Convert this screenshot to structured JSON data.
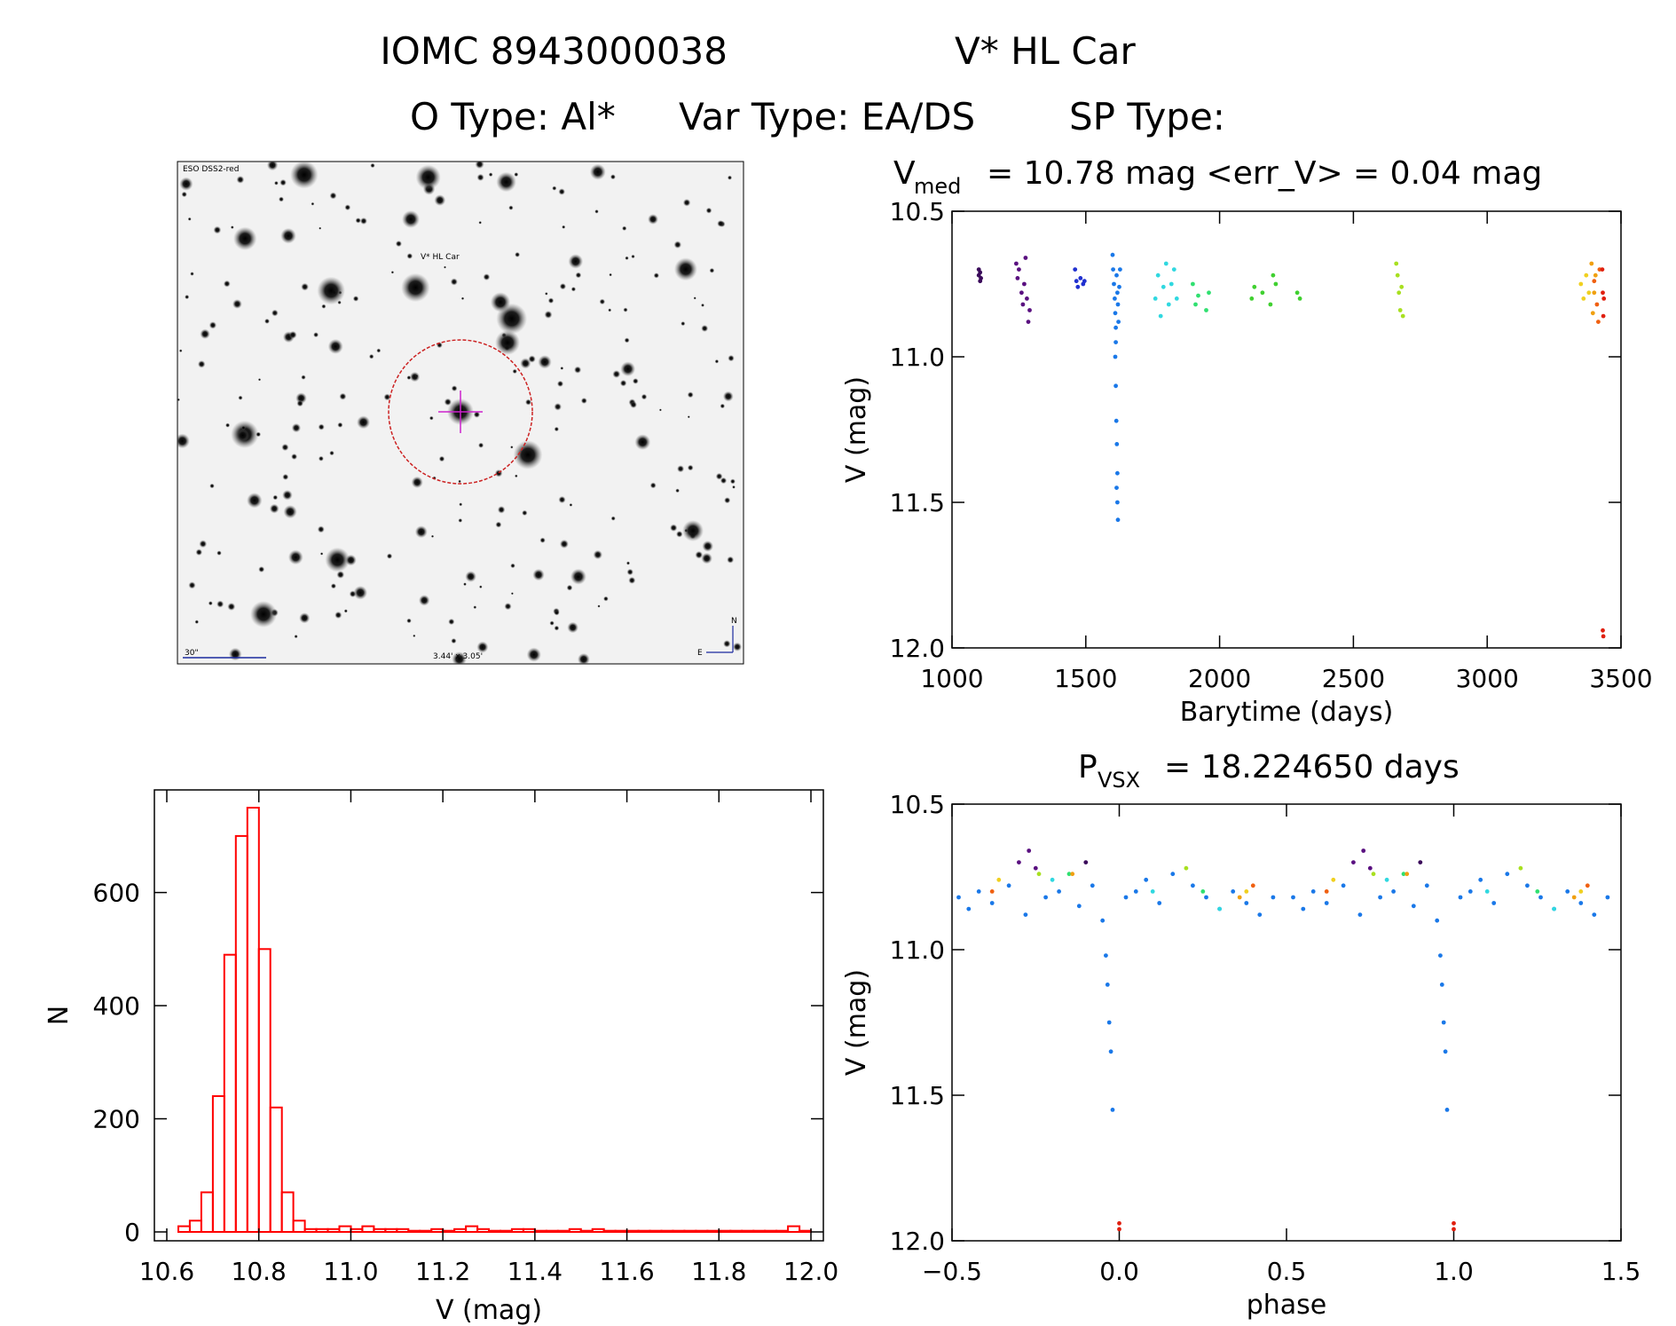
{
  "header": {
    "line1_id": "IOMC 8943000038",
    "line1_name": "V* HL Car",
    "line2_otype": "O Type: Al*",
    "line2_vartype": "Var Type: EA/DS",
    "line2_sptype": "SP Type:"
  },
  "finder": {
    "survey_label": "ESO DSS2-red",
    "target_label": "V* HL Car",
    "scale_label": "30\"",
    "fov_label": "3.44' x 3.05'",
    "north_label": "N",
    "east_label": "E"
  },
  "colors": {
    "histogram": "#ff0000",
    "circle": "#cc2222",
    "crosshair": "#cc22cc",
    "finder_text": "#1b2a9e"
  },
  "chart_data": [
    {
      "id": "lightcurve_time",
      "type": "scatter",
      "title_prefix": "V",
      "title_sub": "med",
      "title_rest": "= 10.78 mag <err_V> = 0.04 mag",
      "xlabel": "Barytime (days)",
      "ylabel": "V (mag)",
      "xlim": [
        1000,
        3500
      ],
      "ylim": [
        12.0,
        10.5
      ],
      "y_inverted": true,
      "xticks": [
        1000,
        1500,
        2000,
        2500,
        3000,
        3500
      ],
      "yticks": [
        10.5,
        11.0,
        11.5,
        12.0
      ],
      "series": [
        {
          "color": "#3a0a5a",
          "x": [
            1100,
            1100,
            1105,
            1105,
            1108
          ],
          "y": [
            10.7,
            10.72,
            10.74,
            10.71,
            10.73
          ]
        },
        {
          "color": "#5a1080",
          "x": [
            1240,
            1245,
            1250,
            1260,
            1265,
            1270,
            1275,
            1280,
            1285,
            1290
          ],
          "y": [
            10.68,
            10.73,
            10.7,
            10.78,
            10.82,
            10.75,
            10.66,
            10.8,
            10.88,
            10.84
          ]
        },
        {
          "color": "#2030d0",
          "x": [
            1460,
            1465,
            1470,
            1480,
            1490,
            1495
          ],
          "y": [
            10.7,
            10.74,
            10.76,
            10.73,
            10.75,
            10.74
          ]
        },
        {
          "color": "#1a78e8",
          "x": [
            1600,
            1602,
            1605,
            1608,
            1610,
            1612,
            1615,
            1618,
            1620,
            1622,
            1625,
            1628,
            1610,
            1612,
            1614,
            1616,
            1618,
            1620,
            1612,
            1615,
            1618
          ],
          "y": [
            10.65,
            10.7,
            10.75,
            10.8,
            10.85,
            10.9,
            10.72,
            10.78,
            10.82,
            10.88,
            10.76,
            10.7,
            11.0,
            11.1,
            11.22,
            11.3,
            11.4,
            11.56,
            10.95,
            11.45,
            11.5
          ]
        },
        {
          "color": "#30d8e0",
          "x": [
            1760,
            1770,
            1780,
            1790,
            1800,
            1810,
            1820,
            1830,
            1840
          ],
          "y": [
            10.8,
            10.72,
            10.86,
            10.76,
            10.68,
            10.82,
            10.75,
            10.7,
            10.8
          ]
        },
        {
          "color": "#30e070",
          "x": [
            1900,
            1910,
            1920,
            1950,
            1960
          ],
          "y": [
            10.75,
            10.82,
            10.79,
            10.84,
            10.78
          ]
        },
        {
          "color": "#40d030",
          "x": [
            2120,
            2130,
            2160,
            2190,
            2200,
            2210,
            2290,
            2300
          ],
          "y": [
            10.8,
            10.76,
            10.78,
            10.82,
            10.72,
            10.75,
            10.78,
            10.8
          ]
        },
        {
          "color": "#a8e020",
          "x": [
            2660,
            2665,
            2670,
            2675,
            2680,
            2685
          ],
          "y": [
            10.68,
            10.72,
            10.78,
            10.84,
            10.76,
            10.86
          ]
        },
        {
          "color": "#f0d020",
          "x": [
            3350,
            3360,
            3370,
            3380
          ],
          "y": [
            10.75,
            10.8,
            10.72,
            10.78
          ]
        },
        {
          "color": "#f0a010",
          "x": [
            3390,
            3395,
            3400,
            3405
          ],
          "y": [
            10.68,
            10.85,
            10.78,
            10.72
          ]
        },
        {
          "color": "#f06010",
          "x": [
            3400,
            3410,
            3415,
            3420
          ],
          "y": [
            10.74,
            10.82,
            10.88,
            10.7
          ]
        },
        {
          "color": "#e02010",
          "x": [
            3430,
            3432,
            3434,
            3436,
            3432,
            3434
          ],
          "y": [
            10.7,
            10.78,
            10.86,
            10.8,
            11.94,
            11.96
          ]
        }
      ]
    },
    {
      "id": "lightcurve_phase",
      "type": "scatter",
      "title_prefix": "P",
      "title_sub": "VSX",
      "title_rest": "= 18.224650 days",
      "xlabel": "phase",
      "ylabel": "V (mag)",
      "xlim": [
        -0.5,
        1.5
      ],
      "ylim": [
        12.0,
        10.5
      ],
      "y_inverted": true,
      "xticks": [
        -0.5,
        0.0,
        0.5,
        1.0,
        1.5
      ],
      "xtick_labels": [
        "−0.5",
        "0.0",
        "0.5",
        "1.0",
        "1.5"
      ],
      "yticks": [
        10.5,
        11.0,
        11.5,
        12.0
      ],
      "series": [
        {
          "color": "#1a78e8",
          "x": [
            -0.48,
            -0.45,
            -0.42,
            -0.38,
            -0.33,
            -0.28,
            -0.22,
            -0.18,
            -0.12,
            -0.08,
            -0.05,
            -0.04,
            -0.035,
            -0.03,
            -0.025,
            -0.02,
            0.02,
            0.05,
            0.08,
            0.12,
            0.16,
            0.22,
            0.26,
            0.3,
            0.34,
            0.38,
            0.42,
            0.46,
            0.52,
            0.55,
            0.58,
            0.62,
            0.67,
            0.72,
            0.78,
            0.82,
            0.88,
            0.92,
            0.95,
            0.96,
            0.965,
            0.97,
            0.975,
            0.98,
            1.02,
            1.05,
            1.08,
            1.12,
            1.16,
            1.22,
            1.26,
            1.3,
            1.34,
            1.38,
            1.42,
            1.46
          ],
          "y": [
            10.82,
            10.86,
            10.8,
            10.84,
            10.78,
            10.88,
            10.82,
            10.8,
            10.85,
            10.78,
            10.9,
            11.02,
            11.12,
            11.25,
            11.35,
            11.55,
            10.82,
            10.8,
            10.76,
            10.84,
            10.74,
            10.78,
            10.82,
            10.86,
            10.8,
            10.84,
            10.88,
            10.82,
            10.82,
            10.86,
            10.8,
            10.84,
            10.78,
            10.88,
            10.82,
            10.8,
            10.85,
            10.78,
            10.9,
            11.02,
            11.12,
            11.25,
            11.35,
            11.55,
            10.82,
            10.8,
            10.76,
            10.84,
            10.74,
            10.78,
            10.82,
            10.86,
            10.8,
            10.84,
            10.88,
            10.82
          ]
        },
        {
          "color": "#5a1080",
          "x": [
            -0.3,
            -0.27,
            -0.25,
            0.7,
            0.73,
            0.75
          ],
          "y": [
            10.7,
            10.66,
            10.72,
            10.7,
            10.66,
            10.72
          ]
        },
        {
          "color": "#3a0a5a",
          "x": [
            -0.1,
            0.9
          ],
          "y": [
            10.7,
            10.7
          ]
        },
        {
          "color": "#30d8e0",
          "x": [
            -0.2,
            0.1,
            0.3,
            0.8,
            1.1,
            1.3
          ],
          "y": [
            10.76,
            10.8,
            10.86,
            10.76,
            10.8,
            10.86
          ]
        },
        {
          "color": "#30e070",
          "x": [
            0.25,
            1.25,
            -0.15,
            0.85
          ],
          "y": [
            10.8,
            10.8,
            10.74,
            10.74
          ]
        },
        {
          "color": "#a8e020",
          "x": [
            -0.24,
            0.2,
            0.76,
            1.2
          ],
          "y": [
            10.74,
            10.72,
            10.74,
            10.72
          ]
        },
        {
          "color": "#f0d020",
          "x": [
            -0.36,
            0.64,
            0.38,
            1.38
          ],
          "y": [
            10.76,
            10.76,
            10.8,
            10.8
          ]
        },
        {
          "color": "#f06010",
          "x": [
            -0.38,
            0.62,
            0.4,
            1.4
          ],
          "y": [
            10.8,
            10.8,
            10.78,
            10.78
          ]
        },
        {
          "color": "#f0a010",
          "x": [
            -0.14,
            0.86,
            0.36,
            1.36
          ],
          "y": [
            10.74,
            10.74,
            10.82,
            10.82
          ]
        },
        {
          "color": "#e02010",
          "x": [
            0.0,
            0.0,
            1.0,
            1.0
          ],
          "y": [
            11.94,
            11.96,
            11.94,
            11.96
          ]
        }
      ]
    },
    {
      "id": "histogram",
      "type": "bar",
      "xlabel": "V (mag)",
      "ylabel": "N",
      "xlim": [
        10.6,
        12.0
      ],
      "ylim": [
        0,
        750
      ],
      "xticks": [
        10.6,
        10.8,
        11.0,
        11.2,
        11.4,
        11.6,
        11.8,
        12.0
      ],
      "xtick_labels": [
        "10.6",
        "10.8",
        "11.0",
        "11.2",
        "11.4",
        "11.6",
        "11.8",
        "12.0"
      ],
      "yticks": [
        0,
        200,
        400,
        600
      ],
      "bin_width": 0.025,
      "bin_starts": [
        10.6,
        10.625,
        10.65,
        10.675,
        10.7,
        10.725,
        10.75,
        10.775,
        10.8,
        10.825,
        10.85,
        10.875,
        10.9,
        10.925,
        10.95,
        10.975,
        11.0,
        11.025,
        11.05,
        11.075,
        11.1,
        11.125,
        11.15,
        11.175,
        11.2,
        11.225,
        11.25,
        11.275,
        11.3,
        11.325,
        11.35,
        11.375,
        11.4,
        11.425,
        11.45,
        11.475,
        11.5,
        11.525,
        11.55,
        11.575,
        11.6,
        11.625,
        11.65,
        11.675,
        11.7,
        11.725,
        11.75,
        11.775,
        11.8,
        11.825,
        11.85,
        11.875,
        11.9,
        11.925,
        11.95,
        11.975
      ],
      "counts": [
        0,
        10,
        20,
        70,
        240,
        490,
        700,
        750,
        500,
        220,
        70,
        20,
        5,
        5,
        5,
        10,
        5,
        10,
        5,
        5,
        5,
        2,
        2,
        5,
        2,
        5,
        10,
        5,
        2,
        2,
        5,
        5,
        2,
        2,
        2,
        5,
        2,
        5,
        2,
        2,
        2,
        2,
        2,
        2,
        2,
        2,
        2,
        2,
        2,
        2,
        2,
        2,
        2,
        2,
        10,
        2
      ]
    }
  ]
}
